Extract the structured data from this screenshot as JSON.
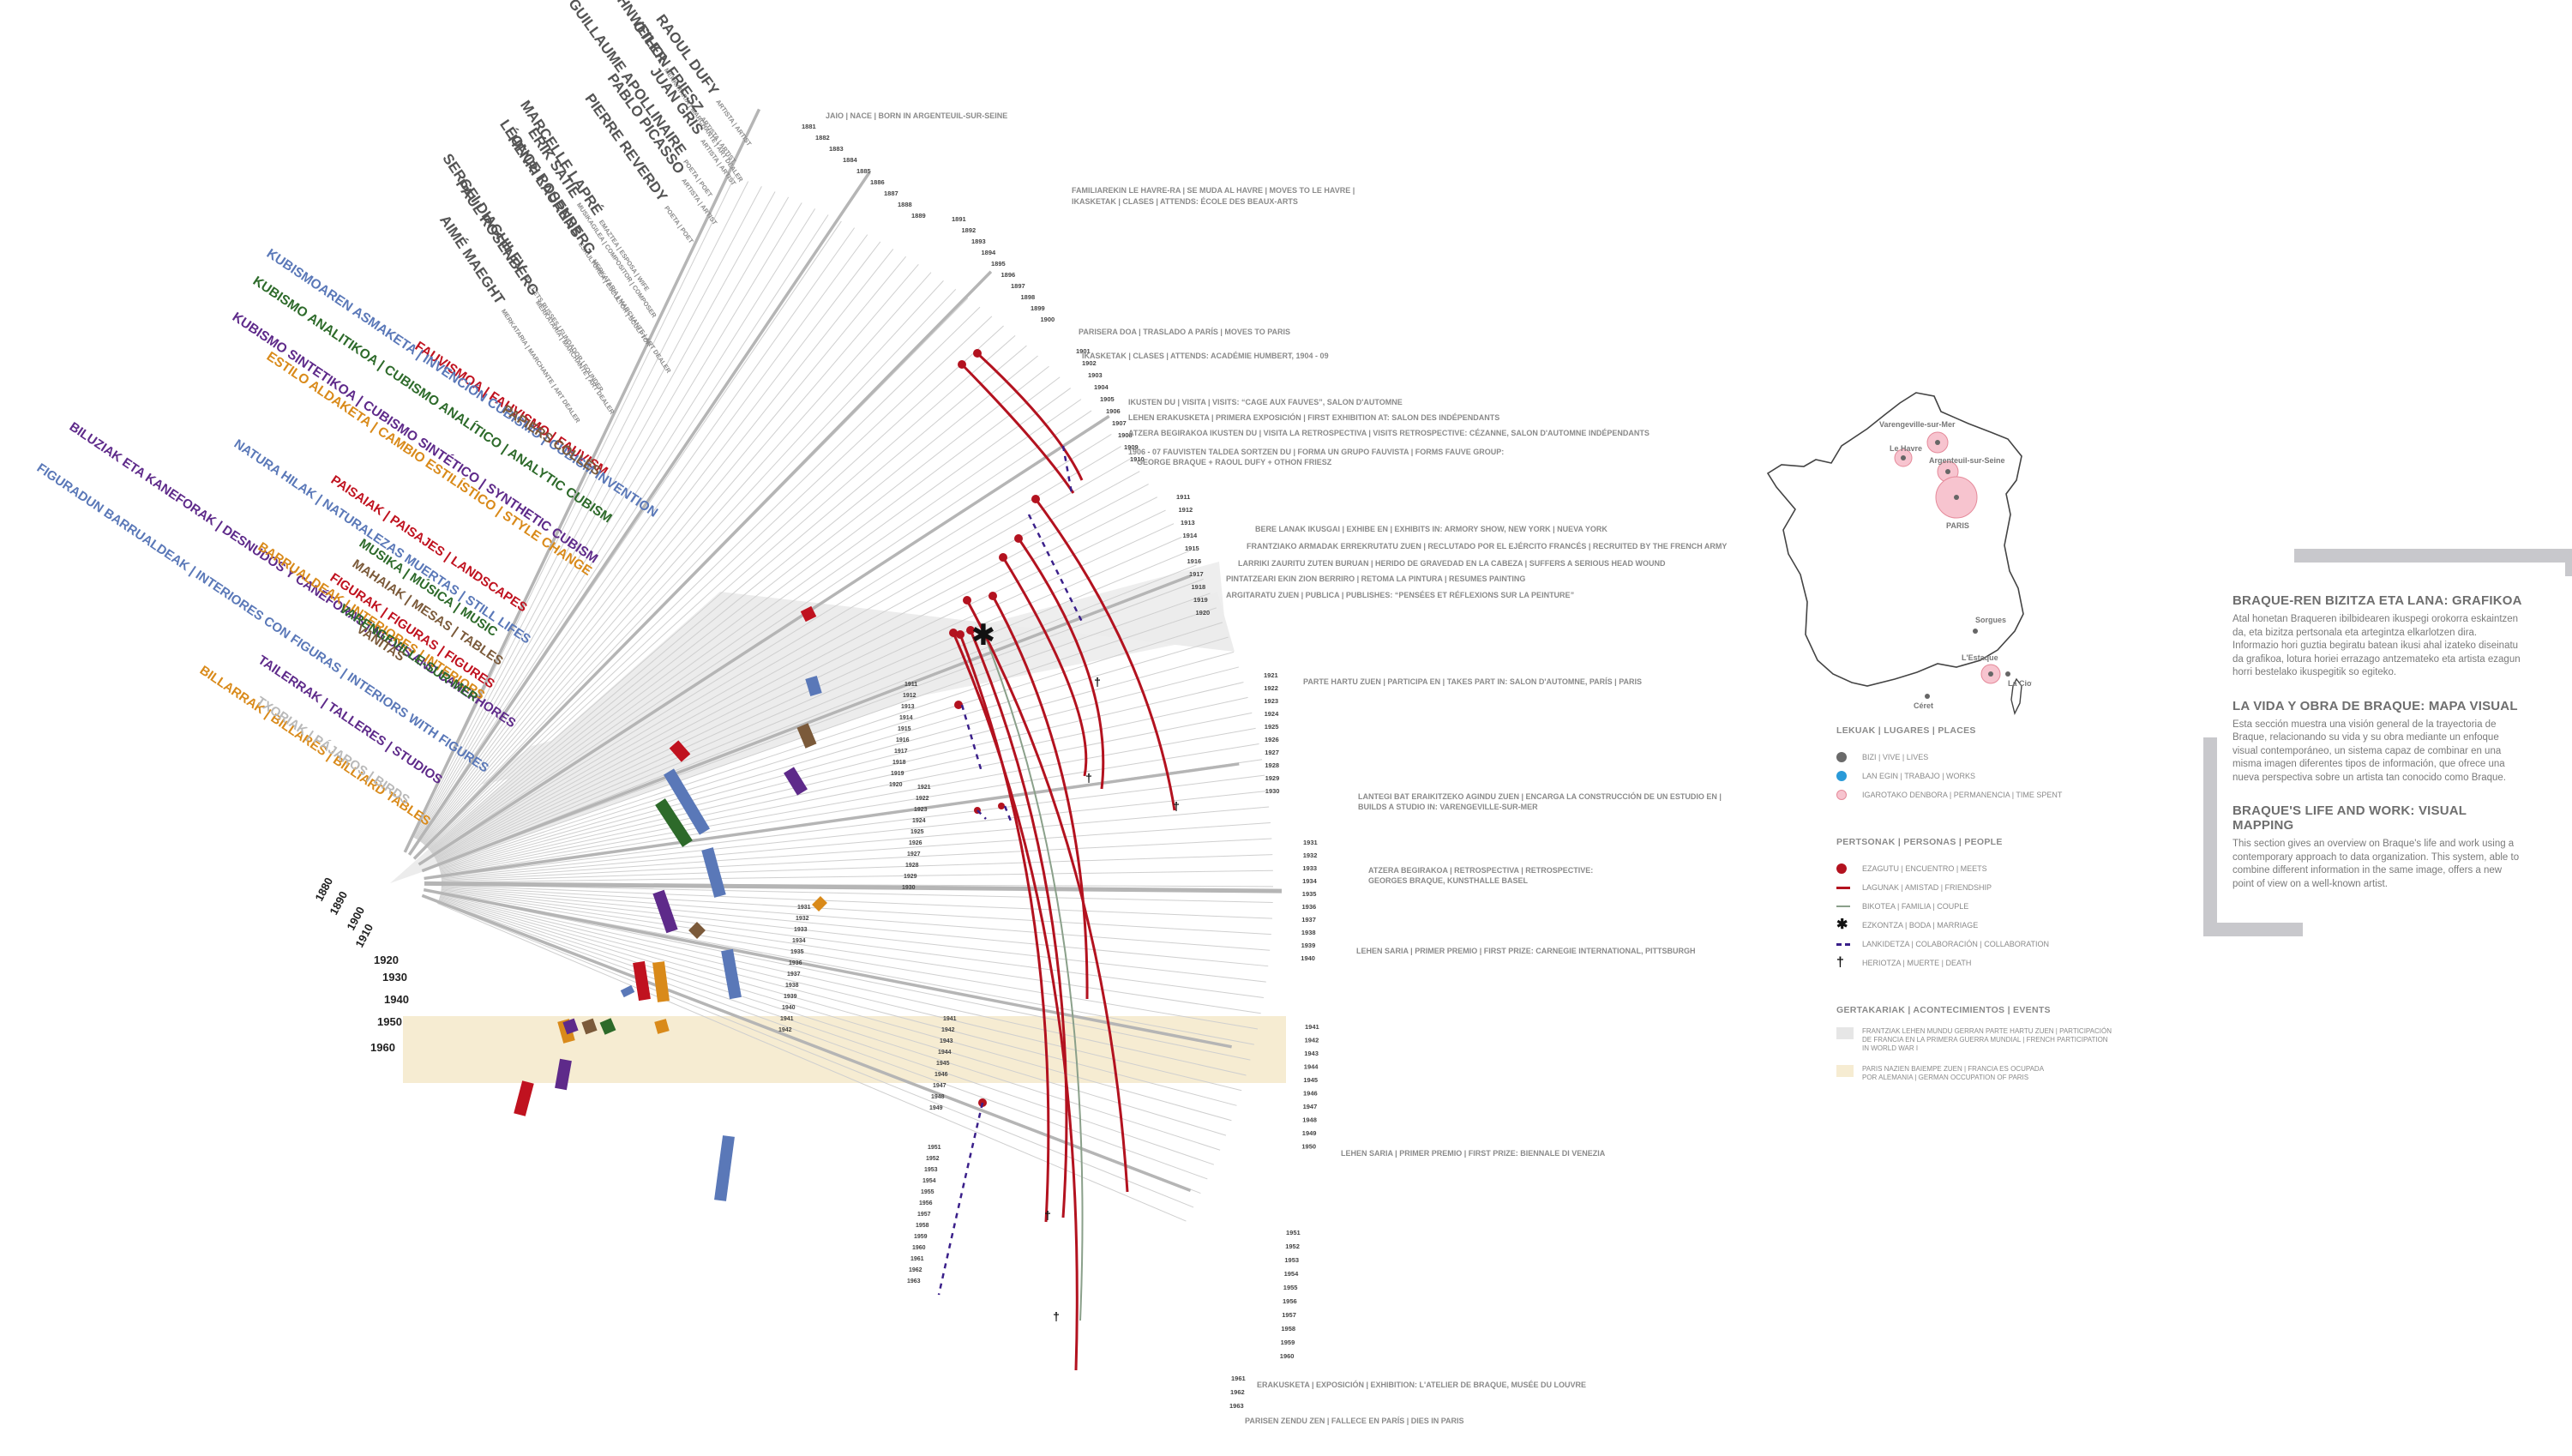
{
  "people": [
    {
      "name": "DANIEL-HENRY KAHNWEILER",
      "role": "MERKATARIA | MARCHANTE | ART DEALER"
    },
    {
      "name": "RAOUL DUFY",
      "role": "ARTISTA | ARTIST"
    },
    {
      "name": "OTHON FRIESZ",
      "role": "ARTISTA | ARTIST"
    },
    {
      "name": "JUAN GRIS",
      "role": "ARTISTA | ARTIST"
    },
    {
      "name": "GUILLAUME APOLLINAIRE",
      "role": "POETA | POET"
    },
    {
      "name": "PABLO PICASSO",
      "role": "ARTISTA | ARTIST"
    },
    {
      "name": "ERIK SATIE",
      "role": "MUSIKAGILEA | COMPOSITOR | COMPOSER"
    },
    {
      "name": "PIERRE REVERDY",
      "role": "POETA | POET"
    },
    {
      "name": "MARCELLE LAPRÉ",
      "role": "EMAZTEA | ESPOSA | WIFE"
    },
    {
      "name": "HENRI LAURENS",
      "role": "ESKULTOREA | ESCULTOR | SCULPTOR"
    },
    {
      "name": "LÉONCE ROSENBERG",
      "role": "MERKATARIA | MARCHANTE | ART DEALER"
    },
    {
      "name": "SERGEI DIAGHILEV",
      "role": "BALLETS RUSSES | FUNDADOR | FOUNDER"
    },
    {
      "name": "PAUL ROSENBERG",
      "role": "MERKATARIA | MARCHANTE | ART DEALER"
    },
    {
      "name": "AIMÉ MAEGHT",
      "role": "MERKATARIA | MARCHANTE | ART DEALER"
    }
  ],
  "styles": [
    {
      "label": "FAUVISMOA | FAUVISMO | FAUVISM",
      "color": "#c0121f"
    },
    {
      "label": "KUBISMOAREN ASMAKETA | INVENCIÓN CUBISMO | CUBISM INVENTION",
      "color": "#5a78b8"
    },
    {
      "label": "KUBISMO ANALITIKOA | CUBISMO ANALÍTICO | ANALYTIC CUBISM",
      "color": "#2d6a2a"
    },
    {
      "label": "PAPIERS COLLÉS",
      "color": "#7b5a3a"
    },
    {
      "label": "KUBISMO SINTETIKOA | CUBISMO SINTÉTICO | SYNTHETIC CUBISM",
      "color": "#5e2a8a"
    },
    {
      "label": "ESTILO ALDAKETA | CAMBIO ESTILÍSTICO | STYLE CHANGE",
      "color": "#d98a1a"
    }
  ],
  "themes": [
    {
      "label": "PAISAIAK | PAISAJES | LANDSCAPES",
      "color": "#c0121f"
    },
    {
      "label": "NATURA HILAK | NATURALEZAS MUERTAS | STILL LIFES",
      "color": "#5a78b8"
    },
    {
      "label": "MUSIKA | MÚSICA | MUSIC",
      "color": "#2d6a2a"
    },
    {
      "label": "MAHAIAK | MESAS | TABLES",
      "color": "#7b5a3a"
    },
    {
      "label": "BILUZIAK ETA KANEFORAK | DESNUDOS Y CANÉFORAS | NUDES AND CANEPHORES",
      "color": "#5e2a8a"
    },
    {
      "label": "BARRUALDEAK | INTERIORES | INTERIORS",
      "color": "#d98a1a"
    },
    {
      "label": "FIGURAK | FIGURAS | FIGURES",
      "color": "#c0121f"
    },
    {
      "label": "FIGURADUN BARRUALDEAK | INTERIORES CON FIGURAS | INTERIORS WITH FIGURES",
      "color": "#5a78b8"
    },
    {
      "label": "VARENGEVILLE-SUR-MER",
      "color": "#2d6a2a"
    },
    {
      "label": "VANITAS",
      "color": "#7b5a3a"
    },
    {
      "label": "TAILERRAK | TALLERES | STUDIOS",
      "color": "#5e2a8a"
    },
    {
      "label": "BILLARRAK | BILLARES | BILLIARD TABLES",
      "color": "#d98a1a"
    },
    {
      "label": "TXORIAK | PÁJAROS | BIRDS",
      "color": "#b9b9b9"
    }
  ],
  "decades": [
    "1880",
    "1890",
    "1900",
    "1910",
    "1920",
    "1930",
    "1940",
    "1950",
    "1960"
  ],
  "events": [
    {
      "year": "1882",
      "text": "JAIO | NACE | BORN IN ARGENTEUIL-SUR-SEINE"
    },
    {
      "year": "1890",
      "text": "FAMILIAREKIN LE HAVRE-RA | SE MUDA AL HAVRE | MOVES TO LE HAVRE |"
    },
    {
      "year": "1890b",
      "text": "IKASKETAK | CLASES | ATTENDS: ÉCOLE DES BEAUX-ARTS"
    },
    {
      "year": "1900",
      "text": "PARISERA DOA | TRASLADO A PARÍS | MOVES TO PARIS"
    },
    {
      "year": "1902",
      "text": "IKASKETAK | CLASES | ATTENDS: ACADÉMIE HUMBERT, 1904 - 09"
    },
    {
      "year": "1905",
      "text": "IKUSTEN DU | VISITA | VISITS: “CAGE AUX FAUVES”, SALON D'AUTOMNE"
    },
    {
      "year": "1906",
      "text": "LEHEN ERAKUSKETA | PRIMERA EXPOSICIÓN | FIRST EXHIBITION AT: SALON DES INDÉPENDANTS"
    },
    {
      "year": "1907",
      "text": "ATZERA BEGIRAKOA IKUSTEN DU | VISITA LA RETROSPECTIVA | VISITS RETROSPECTIVE: CÉZANNE, SALON D'AUTOMNE INDÉPENDANTS"
    },
    {
      "year": "1908",
      "text": "1906 - 07   FAUVISTEN TALDEA SORTZEN DU | FORMA UN GRUPO FAUVISTA | FORMS FAUVE GROUP:"
    },
    {
      "year": "1908b",
      "text": "GEORGE BRAQUE + RAOUL DUFY + OTHON FRIESZ"
    },
    {
      "year": "1913",
      "text": "BERE LANAK IKUSGAI | EXHIBE EN | EXHIBITS IN: ARMORY SHOW, NEW YORK | NUEVA YORK"
    },
    {
      "year": "1914",
      "text": "FRANTZIAKO ARMADAK ERREKRUTATU ZUEN | RECLUTADO POR EL EJÉRCITO FRANCÉS | RECRUITED BY THE FRENCH ARMY"
    },
    {
      "year": "1915",
      "text": "LARRIKI ZAURITU ZUTEN BURUAN | HERIDO DE GRAVEDAD EN LA CABEZA | SUFFERS A SERIOUS HEAD WOUND"
    },
    {
      "year": "1916",
      "text": "PINTATZEARI EKIN ZION BERRIRO | RETOMA LA PINTURA | RESUMES PAINTING"
    },
    {
      "year": "1917",
      "text": "ARGITARATU ZUEN | PUBLICA | PUBLISHES: “PENSÉES ET RÉFLEXIONS SUR LA PEINTURE”"
    },
    {
      "year": "1922",
      "text": "PARTE HARTU ZUEN | PARTICIPA EN | TAKES PART IN: SALON D'AUTOMNE, PARÍS | PARIS"
    },
    {
      "year": "1930",
      "text": "LANTEGI BAT ERAIKITZEKO AGINDU ZUEN | ENCARGA LA CONSTRUCCIÓN DE UN ESTUDIO EN |"
    },
    {
      "year": "1930b",
      "text": "BUILDS A STUDIO IN: VARENGEVILLE-SUR-MER"
    },
    {
      "year": "1933",
      "text": "ATZERA BEGIRAKOA | RETROSPECTIVA | RETROSPECTIVE:"
    },
    {
      "year": "1933b",
      "text": "GEORGES BRAQUE, KUNSTHALLE BASEL"
    },
    {
      "year": "1937",
      "text": "LEHEN SARIA | PRIMER PREMIO | FIRST PRIZE: CARNEGIE INTERNATIONAL, PITTSBURGH"
    },
    {
      "year": "1948",
      "text": "LEHEN SARIA | PRIMER PREMIO | FIRST PRIZE: BIENNALE DI VENEZIA"
    },
    {
      "year": "1961",
      "text": "ERAKUSKETA | EXPOSICIÓN | EXHIBITION: L'ATELIER DE BRAQUE, MUSÉE DU LOUVRE"
    },
    {
      "year": "1963",
      "text": "PARISEN ZENDU ZEN | FALLECE EN PARÍS | DIES IN PARIS"
    }
  ],
  "map": {
    "cities": [
      "Varengeville-sur-Mer",
      "Le Havre",
      "Argenteuil-sur-Seine",
      "PARIS",
      "Sorgues",
      "L'Estaque",
      "La Ciotat",
      "Céret"
    ]
  },
  "legend": {
    "places": {
      "title": "LEKUAK | LUGARES | PLACES",
      "items": [
        {
          "label": "BIZI | VIVE | LIVES",
          "color": "#6a6a6a"
        },
        {
          "label": "LAN EGIN | TRABAJO | WORKS",
          "color": "#2a9ad8"
        },
        {
          "label": "IGAROTAKO DENBORA | PERMANENCIA | TIME SPENT",
          "color": "#e58a9a"
        }
      ]
    },
    "people": {
      "title": "PERTSONAK | PERSONAS | PEOPLE",
      "items": [
        {
          "label": "EZAGUTU | ENCUENTRO | MEETS"
        },
        {
          "label": "LAGUNAK | AMISTAD | FRIENDSHIP"
        },
        {
          "label": "BIKOTEA | FAMILIA | COUPLE"
        },
        {
          "label": "EZKONTZA | BODA | MARRIAGE"
        },
        {
          "label": "LANKIDETZA | COLABORACIÓN | COLLABORATION"
        },
        {
          "label": "HERIOTZA | MUERTE | DEATH"
        }
      ]
    },
    "events": {
      "title": "GERTAKARIAK | ACONTECIMIENTOS | EVENTS",
      "items": [
        {
          "label1": "FRANTZIAK LEHEN MUNDU GERRAN PARTE HARTU ZUEN | PARTICIPACIÓN",
          "label2": "DE FRANCIA EN LA PRIMERA GUERRA MUNDIAL | FRENCH PARTICIPATION",
          "label3": "IN WORLD WAR I",
          "color": "#e6e6e6"
        },
        {
          "label1": "PARIS NAZIEN BAIEMPE ZUEN | FRANCIA ES OCUPADA",
          "label2": "POR ALEMANIA | GERMAN OCCUPATION OF PARIS",
          "label3": "",
          "color": "#f6ecd2"
        }
      ]
    }
  },
  "info": {
    "eu_title": "BRAQUE-REN BIZITZA ETA LANA: GRAFIKOA",
    "eu_text": "Atal honetan Braqueren ibilbidearen ikuspegi orokorra eskaintzen da, eta bizitza pertsonala eta artegintza elkarlotzen dira. Informazio hori guztia begiratu batean ikusi ahal izateko diseinatu da grafikoa, lotura horiei errazago antzemateko eta artista ezagun horri bestelako ikuspegitik so egiteko.",
    "es_title": "LA VIDA Y OBRA DE BRAQUE: MAPA VISUAL",
    "es_text": "Esta sección muestra una visión general de la trayectoria de Braque, relacionando su vida y su obra mediante un enfoque visual contemporáneo, un sistema capaz de combinar en una misma imagen diferentes tipos de información, que ofrece una nueva perspectiva sobre un artista tan conocido como Braque.",
    "en_title": "BRAQUE'S LIFE AND WORK: VISUAL MAPPING",
    "en_text": "This section gives an overview on Braque's life and work using a contemporary approach to data organization. This system, able to combine different information in the same image, offers a new point of view on a well-known artist."
  }
}
